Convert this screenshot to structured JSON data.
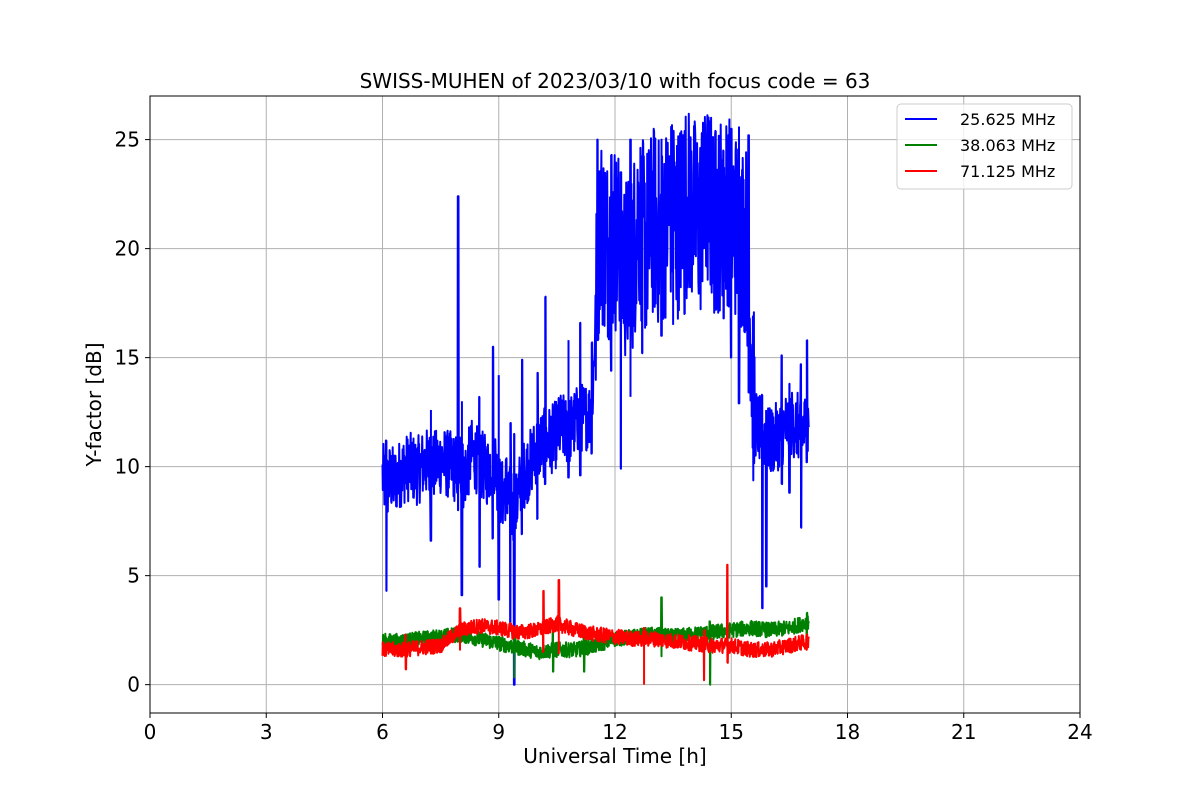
{
  "chart_data": {
    "type": "line",
    "title": "SWISS-MUHEN of 2023/03/10 with focus code = 63",
    "xlabel": "Universal Time [h]",
    "ylabel": "Y-factor [dB]",
    "xlim": [
      0,
      24
    ],
    "ylim": [
      -1.3,
      27
    ],
    "xticks": [
      0,
      3,
      6,
      9,
      12,
      15,
      18,
      21,
      24
    ],
    "yticks": [
      0,
      5,
      10,
      15,
      20,
      25
    ],
    "grid": true,
    "legend_position": "top-right",
    "series": [
      {
        "name": "25.625 MHz",
        "color": "#0000ff",
        "x": [
          6.0,
          6.1,
          6.2,
          6.3,
          6.5,
          6.7,
          6.9,
          7.1,
          7.3,
          7.5,
          7.7,
          7.9,
          8.0,
          8.1,
          8.3,
          8.5,
          8.7,
          8.9,
          9.0,
          9.1,
          9.2,
          9.3,
          9.4,
          9.5,
          9.6,
          9.8,
          10.0,
          10.2,
          10.4,
          10.6,
          10.8,
          11.0,
          11.2,
          11.4,
          11.6,
          11.8,
          12.0,
          12.2,
          12.4,
          12.6,
          12.8,
          13.0,
          13.2,
          13.4,
          13.6,
          13.8,
          14.0,
          14.2,
          14.4,
          14.6,
          14.8,
          15.0,
          15.2,
          15.4,
          15.6,
          15.8,
          16.0,
          16.2,
          16.4,
          16.6,
          16.8,
          17.0
        ],
        "y": [
          9.6,
          9.0,
          9.5,
          9.3,
          9.8,
          10.0,
          9.8,
          10.2,
          10.0,
          10.3,
          10.1,
          9.9,
          10.3,
          9.5,
          10.6,
          10.2,
          9.8,
          10.4,
          9.0,
          8.7,
          9.2,
          8.4,
          7.6,
          8.8,
          9.5,
          10.1,
          10.9,
          11.1,
          11.3,
          11.8,
          11.6,
          12.1,
          12.3,
          12.4,
          21.2,
          20.1,
          20.6,
          19.4,
          18.8,
          21.6,
          20.2,
          21.3,
          20.4,
          22.0,
          21.1,
          22.3,
          21.8,
          21.2,
          22.4,
          21.0,
          22.1,
          21.6,
          20.8,
          20.4,
          12.1,
          11.5,
          11.1,
          11.4,
          11.8,
          12.0,
          11.7,
          11.9
        ],
        "extremes": [
          {
            "x": 6.1,
            "low": 4.3,
            "high": 11.2
          },
          {
            "x": 7.25,
            "low": 6.6,
            "high": 12.6
          },
          {
            "x": 7.95,
            "low": 8.0,
            "high": 22.4
          },
          {
            "x": 8.05,
            "low": 4.1,
            "high": 13.0
          },
          {
            "x": 8.5,
            "low": 5.4,
            "high": 13.2
          },
          {
            "x": 8.85,
            "low": 6.7,
            "high": 15.5
          },
          {
            "x": 9.0,
            "low": 3.9,
            "high": 14.2
          },
          {
            "x": 9.3,
            "low": 2.5,
            "high": 12.0
          },
          {
            "x": 9.4,
            "low": 0.0,
            "high": 11.5
          },
          {
            "x": 9.6,
            "low": 6.9,
            "high": 14.9
          },
          {
            "x": 10.0,
            "low": 7.6,
            "high": 14.3
          },
          {
            "x": 10.2,
            "low": 9.2,
            "high": 17.8
          },
          {
            "x": 10.8,
            "low": 9.5,
            "high": 15.8
          },
          {
            "x": 11.1,
            "low": 9.6,
            "high": 16.6
          },
          {
            "x": 11.4,
            "low": 10.6,
            "high": 15.7
          },
          {
            "x": 11.55,
            "low": 15.8,
            "high": 25.0
          },
          {
            "x": 11.9,
            "low": 14.4,
            "high": 24.3
          },
          {
            "x": 12.15,
            "low": 9.9,
            "high": 23.5
          },
          {
            "x": 12.4,
            "low": 13.2,
            "high": 25.0
          },
          {
            "x": 12.7,
            "low": 15.2,
            "high": 23.8
          },
          {
            "x": 13.2,
            "low": 16.0,
            "high": 25.0
          },
          {
            "x": 13.5,
            "low": 16.5,
            "high": 25.4
          },
          {
            "x": 13.8,
            "low": 17.0,
            "high": 25.4
          },
          {
            "x": 14.25,
            "low": 18.5,
            "high": 25.3
          },
          {
            "x": 14.6,
            "low": 17.2,
            "high": 25.4
          },
          {
            "x": 14.8,
            "low": 16.8,
            "high": 24.5
          },
          {
            "x": 15.0,
            "low": 15.0,
            "high": 25.5
          },
          {
            "x": 15.2,
            "low": 12.9,
            "high": 25.6
          },
          {
            "x": 15.45,
            "low": 13.4,
            "high": 25.2
          },
          {
            "x": 15.8,
            "low": 3.5,
            "high": 13.3
          },
          {
            "x": 15.9,
            "low": 4.5,
            "high": 12.6
          },
          {
            "x": 16.3,
            "low": 9.2,
            "high": 15.1
          },
          {
            "x": 16.5,
            "low": 8.8,
            "high": 13.8
          },
          {
            "x": 16.8,
            "low": 7.2,
            "high": 14.7
          },
          {
            "x": 16.95,
            "low": 10.2,
            "high": 15.8
          }
        ]
      },
      {
        "name": "38.063 MHz",
        "color": "#008000",
        "x": [
          6.0,
          6.5,
          7.0,
          7.5,
          8.0,
          8.5,
          9.0,
          9.5,
          10.0,
          10.5,
          11.0,
          11.5,
          12.0,
          12.5,
          13.0,
          13.5,
          14.0,
          14.5,
          15.0,
          15.5,
          16.0,
          16.5,
          17.0
        ],
        "y": [
          2.0,
          2.0,
          2.1,
          2.2,
          2.3,
          2.1,
          1.9,
          1.7,
          1.5,
          1.6,
          1.6,
          1.8,
          2.1,
          2.2,
          2.3,
          2.2,
          2.3,
          2.4,
          2.5,
          2.6,
          2.5,
          2.6,
          2.9
        ],
        "extremes": [
          {
            "x": 9.4,
            "low": 0.3,
            "high": 2.5
          },
          {
            "x": 10.4,
            "low": 0.6,
            "high": 2.4
          },
          {
            "x": 11.2,
            "low": 0.6,
            "high": 2.6
          },
          {
            "x": 13.2,
            "low": 1.3,
            "high": 4.0
          },
          {
            "x": 14.45,
            "low": 0.0,
            "high": 2.9
          },
          {
            "x": 16.95,
            "low": 2.2,
            "high": 3.3
          }
        ]
      },
      {
        "name": "71.125 MHz",
        "color": "#ff0000",
        "x": [
          6.0,
          6.5,
          7.0,
          7.5,
          8.0,
          8.5,
          9.0,
          9.5,
          10.0,
          10.5,
          11.0,
          11.5,
          12.0,
          12.5,
          13.0,
          13.5,
          14.0,
          14.5,
          15.0,
          15.5,
          16.0,
          16.5,
          17.0
        ],
        "y": [
          1.6,
          1.6,
          1.7,
          1.8,
          2.5,
          2.7,
          2.6,
          2.4,
          2.5,
          2.8,
          2.5,
          2.3,
          2.2,
          2.1,
          2.1,
          2.0,
          1.9,
          1.8,
          1.8,
          1.6,
          1.6,
          1.8,
          2.0
        ],
        "extremes": [
          {
            "x": 6.6,
            "low": 0.7,
            "high": 2.3
          },
          {
            "x": 8.0,
            "low": 1.6,
            "high": 3.5
          },
          {
            "x": 10.55,
            "low": 1.4,
            "high": 4.8
          },
          {
            "x": 10.15,
            "low": 1.5,
            "high": 4.3
          },
          {
            "x": 12.75,
            "low": 0.0,
            "high": 2.6
          },
          {
            "x": 14.3,
            "low": 0.2,
            "high": 2.5
          },
          {
            "x": 14.9,
            "low": 1.0,
            "high": 5.5
          },
          {
            "x": 16.95,
            "low": 1.6,
            "high": 2.3
          }
        ]
      }
    ]
  }
}
